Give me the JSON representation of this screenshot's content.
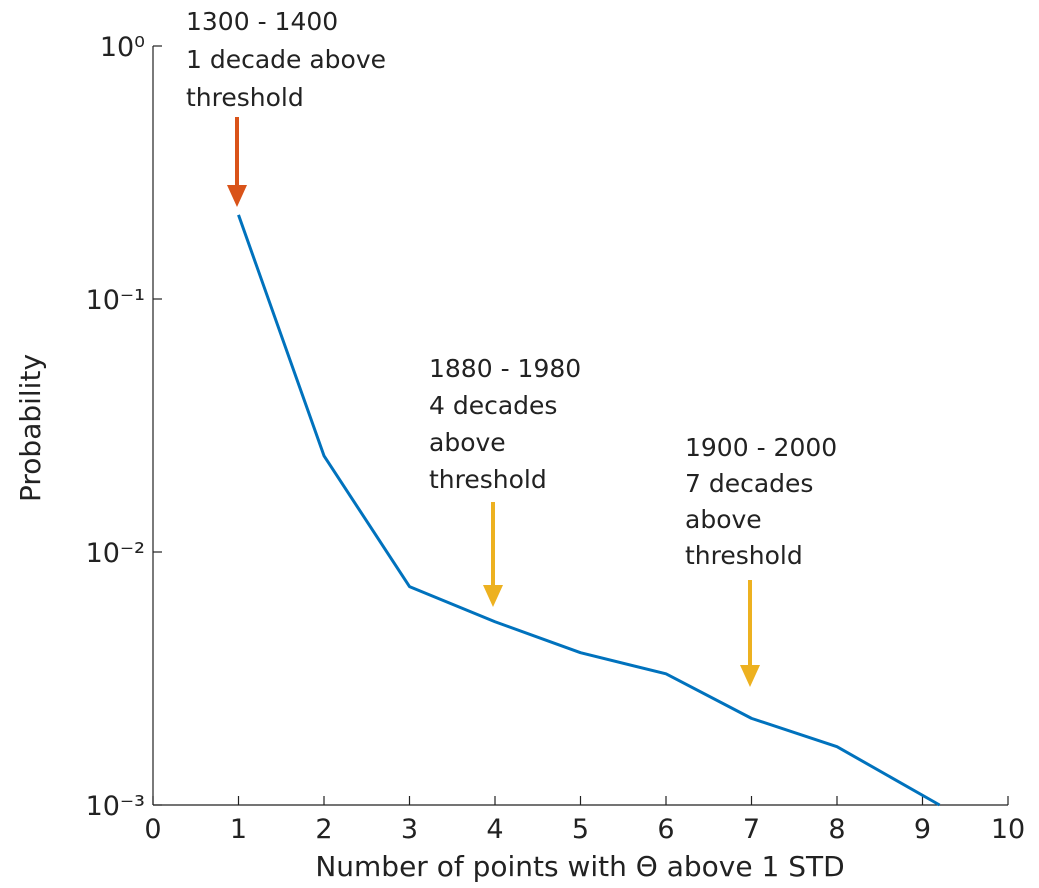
{
  "chart_data": {
    "type": "line",
    "x_label": "Number of points with Θ above 1 STD",
    "y_label": "Probability",
    "x": [
      1,
      2,
      3,
      4,
      5,
      6,
      7,
      8,
      9.2
    ],
    "series": [
      {
        "color": "#0072bd",
        "values": [
          0.215,
          0.024,
          0.0073,
          0.0053,
          0.004,
          0.0033,
          0.0022,
          0.0017,
          0.001
        ]
      }
    ],
    "y_scale": "log",
    "xlim": [
      0,
      10
    ],
    "xticks": [
      0,
      1,
      2,
      3,
      4,
      5,
      6,
      7,
      8,
      9,
      10
    ],
    "ylim": [
      0.001,
      1
    ],
    "yticks": [
      {
        "value": 0.001,
        "label": "10⁻³"
      },
      {
        "value": 0.01,
        "label": "10⁻²"
      },
      {
        "value": 0.1,
        "label": "10⁻¹"
      },
      {
        "value": 1,
        "label": "10⁰"
      }
    ],
    "annotations": [
      {
        "lines": [
          "1300 - 1400",
          "1 decade above",
          "threshold"
        ],
        "color": "#d95319"
      },
      {
        "lines": [
          "1880 - 1980",
          "4 decades",
          "above",
          "threshold"
        ],
        "color": "#edb120"
      },
      {
        "lines": [
          "1900 - 2000",
          "7 decades",
          "above",
          "threshold"
        ],
        "color": "#edb120"
      }
    ]
  }
}
